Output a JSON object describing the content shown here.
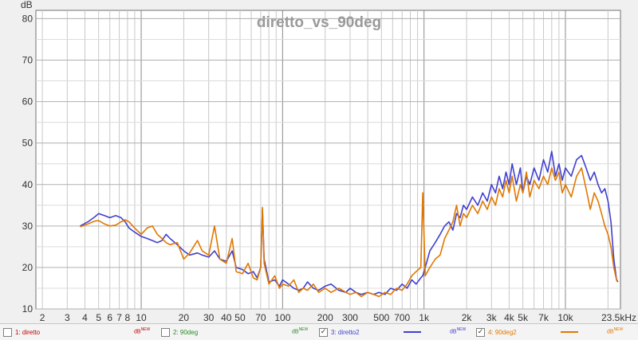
{
  "chart_data": {
    "type": "line",
    "title": "diretto_vs_90deg",
    "ylabel": "dB",
    "xlabel": "",
    "xscale": "log",
    "xlim": [
      1.8,
      24500
    ],
    "ylim": [
      10,
      82
    ],
    "grid": true,
    "x_tick_labels": [
      "2",
      "3",
      "4",
      "5",
      "6",
      "7",
      "8",
      "10",
      "20",
      "30",
      "40",
      "50",
      "70",
      "100",
      "200",
      "300",
      "500",
      "700",
      "1k",
      "2k",
      "3k",
      "4k",
      "5k",
      "7k",
      "10k",
      "23.5kHz"
    ],
    "x_tick_values": [
      2,
      3,
      4,
      5,
      6,
      7,
      8,
      10,
      20,
      30,
      40,
      50,
      70,
      100,
      200,
      300,
      500,
      700,
      1000,
      2000,
      3000,
      4000,
      5000,
      7000,
      10000,
      23500
    ],
    "y_ticks": [
      10,
      20,
      30,
      40,
      50,
      60,
      70,
      80
    ],
    "series": [
      {
        "name": "3: diretto2",
        "color": "#4040d0",
        "points": [
          [
            3.7,
            30
          ],
          [
            4.2,
            31
          ],
          [
            4.7,
            32.2
          ],
          [
            5.0,
            33
          ],
          [
            5.5,
            32.5
          ],
          [
            6.0,
            32
          ],
          [
            6.6,
            32.5
          ],
          [
            7.2,
            32
          ],
          [
            7.7,
            31
          ],
          [
            8.2,
            29.5
          ],
          [
            9.0,
            28.5
          ],
          [
            10,
            27.5
          ],
          [
            11,
            27
          ],
          [
            12,
            26.5
          ],
          [
            13,
            26
          ],
          [
            14,
            26.5
          ],
          [
            15,
            28
          ],
          [
            16,
            27
          ],
          [
            18,
            25.5
          ],
          [
            20,
            24
          ],
          [
            22,
            23
          ],
          [
            25,
            23.5
          ],
          [
            27,
            23
          ],
          [
            30,
            22.5
          ],
          [
            33,
            24
          ],
          [
            36,
            22
          ],
          [
            40,
            21.5
          ],
          [
            44,
            24
          ],
          [
            47,
            20
          ],
          [
            52,
            19.5
          ],
          [
            57,
            18.5
          ],
          [
            62,
            19
          ],
          [
            66,
            17.5
          ],
          [
            70,
            20
          ],
          [
            72,
            34
          ],
          [
            74,
            22
          ],
          [
            80,
            16.5
          ],
          [
            88,
            17
          ],
          [
            95,
            15.5
          ],
          [
            100,
            17
          ],
          [
            110,
            16
          ],
          [
            120,
            15
          ],
          [
            130,
            14.5
          ],
          [
            140,
            15
          ],
          [
            150,
            16.5
          ],
          [
            165,
            15
          ],
          [
            180,
            14.5
          ],
          [
            200,
            15.5
          ],
          [
            220,
            16
          ],
          [
            250,
            14.5
          ],
          [
            280,
            14
          ],
          [
            300,
            15
          ],
          [
            330,
            14
          ],
          [
            360,
            13.5
          ],
          [
            400,
            14
          ],
          [
            440,
            13.5
          ],
          [
            480,
            14
          ],
          [
            530,
            13.5
          ],
          [
            580,
            15
          ],
          [
            640,
            14.5
          ],
          [
            700,
            16
          ],
          [
            760,
            15
          ],
          [
            820,
            17
          ],
          [
            880,
            16
          ],
          [
            950,
            17.5
          ],
          [
            980,
            18
          ],
          [
            1020,
            20
          ],
          [
            1100,
            24
          ],
          [
            1200,
            26
          ],
          [
            1300,
            28
          ],
          [
            1400,
            30
          ],
          [
            1500,
            31
          ],
          [
            1600,
            29
          ],
          [
            1700,
            33
          ],
          [
            1800,
            32
          ],
          [
            1900,
            35
          ],
          [
            2000,
            34
          ],
          [
            2200,
            37
          ],
          [
            2400,
            35
          ],
          [
            2600,
            38
          ],
          [
            2800,
            36
          ],
          [
            3000,
            40
          ],
          [
            3200,
            38
          ],
          [
            3400,
            42
          ],
          [
            3600,
            39
          ],
          [
            3800,
            43
          ],
          [
            4000,
            40
          ],
          [
            4200,
            45
          ],
          [
            4500,
            40
          ],
          [
            4800,
            44
          ],
          [
            5000,
            38
          ],
          [
            5300,
            42
          ],
          [
            5600,
            40
          ],
          [
            6000,
            44
          ],
          [
            6500,
            41
          ],
          [
            7000,
            46
          ],
          [
            7500,
            43
          ],
          [
            8000,
            48
          ],
          [
            8500,
            42
          ],
          [
            9000,
            45
          ],
          [
            9500,
            41
          ],
          [
            10000,
            44
          ],
          [
            11000,
            42
          ],
          [
            12000,
            46
          ],
          [
            13000,
            47
          ],
          [
            14000,
            44
          ],
          [
            15000,
            41
          ],
          [
            16000,
            43
          ],
          [
            17000,
            40
          ],
          [
            18000,
            38
          ],
          [
            19000,
            39
          ],
          [
            20000,
            36
          ],
          [
            21000,
            31
          ],
          [
            22000,
            22
          ],
          [
            23000,
            17
          ],
          [
            23500,
            16.5
          ]
        ]
      },
      {
        "name": "4: 90deg2",
        "color": "#e07800",
        "points": [
          [
            3.7,
            29.8
          ],
          [
            4.2,
            30.5
          ],
          [
            4.7,
            31.2
          ],
          [
            5.0,
            31.3
          ],
          [
            5.5,
            30.5
          ],
          [
            6.0,
            30
          ],
          [
            6.6,
            30.2
          ],
          [
            7.2,
            31
          ],
          [
            7.7,
            31.5
          ],
          [
            8.2,
            31
          ],
          [
            9.0,
            29.5
          ],
          [
            10,
            28
          ],
          [
            11,
            29.5
          ],
          [
            12,
            30
          ],
          [
            13,
            28
          ],
          [
            14,
            27
          ],
          [
            15,
            26
          ],
          [
            16,
            25.5
          ],
          [
            18,
            26
          ],
          [
            20,
            22
          ],
          [
            22,
            23.5
          ],
          [
            25,
            26.5
          ],
          [
            27,
            24
          ],
          [
            30,
            23
          ],
          [
            33,
            30
          ],
          [
            36,
            22
          ],
          [
            40,
            21
          ],
          [
            44,
            27
          ],
          [
            47,
            19
          ],
          [
            52,
            18.5
          ],
          [
            57,
            21
          ],
          [
            62,
            17.5
          ],
          [
            66,
            17
          ],
          [
            70,
            20
          ],
          [
            72,
            34.5
          ],
          [
            74,
            21
          ],
          [
            80,
            16
          ],
          [
            88,
            18
          ],
          [
            95,
            15
          ],
          [
            100,
            16
          ],
          [
            110,
            15.5
          ],
          [
            120,
            17
          ],
          [
            130,
            14
          ],
          [
            140,
            15
          ],
          [
            150,
            14.5
          ],
          [
            165,
            16
          ],
          [
            180,
            14
          ],
          [
            200,
            15
          ],
          [
            220,
            14
          ],
          [
            250,
            15
          ],
          [
            280,
            14
          ],
          [
            300,
            13.5
          ],
          [
            330,
            14
          ],
          [
            360,
            13
          ],
          [
            400,
            14
          ],
          [
            440,
            13.5
          ],
          [
            480,
            13
          ],
          [
            530,
            14
          ],
          [
            580,
            13.5
          ],
          [
            640,
            15
          ],
          [
            700,
            14.5
          ],
          [
            760,
            16
          ],
          [
            820,
            18
          ],
          [
            880,
            19
          ],
          [
            950,
            20
          ],
          [
            980,
            38
          ],
          [
            1020,
            18
          ],
          [
            1100,
            20
          ],
          [
            1200,
            22
          ],
          [
            1300,
            23
          ],
          [
            1400,
            27
          ],
          [
            1500,
            29
          ],
          [
            1600,
            31
          ],
          [
            1700,
            35
          ],
          [
            1800,
            30
          ],
          [
            1900,
            33
          ],
          [
            2000,
            32
          ],
          [
            2200,
            35
          ],
          [
            2400,
            33
          ],
          [
            2600,
            36
          ],
          [
            2800,
            34
          ],
          [
            3000,
            37
          ],
          [
            3200,
            35
          ],
          [
            3400,
            39
          ],
          [
            3600,
            37
          ],
          [
            3800,
            41
          ],
          [
            4000,
            38
          ],
          [
            4200,
            42
          ],
          [
            4500,
            36
          ],
          [
            4800,
            40
          ],
          [
            5000,
            38
          ],
          [
            5300,
            43
          ],
          [
            5600,
            37
          ],
          [
            6000,
            41
          ],
          [
            6500,
            39
          ],
          [
            7000,
            42
          ],
          [
            7500,
            40
          ],
          [
            8000,
            44
          ],
          [
            8500,
            41
          ],
          [
            9000,
            43
          ],
          [
            9500,
            38
          ],
          [
            10000,
            40
          ],
          [
            11000,
            37
          ],
          [
            12000,
            42
          ],
          [
            13000,
            44
          ],
          [
            14000,
            39
          ],
          [
            15000,
            34
          ],
          [
            16000,
            38
          ],
          [
            17000,
            36
          ],
          [
            18000,
            33
          ],
          [
            19000,
            30
          ],
          [
            20000,
            28
          ],
          [
            21000,
            25
          ],
          [
            22000,
            20
          ],
          [
            23000,
            17
          ],
          [
            23500,
            16.8
          ]
        ]
      }
    ]
  },
  "legend": [
    {
      "label": "1: diretto",
      "unit": "dB",
      "sup": "NEW",
      "checked": false,
      "color": "#c00000"
    },
    {
      "label": "2: 90deg",
      "unit": "dB",
      "sup": "NEW",
      "checked": false,
      "color": "#2a8a2a"
    },
    {
      "label": "3: diretto2",
      "unit": "dB",
      "sup": "NEW",
      "checked": true,
      "color": "#4040d0"
    },
    {
      "label": "4: 90deg2",
      "unit": "dB",
      "sup": "NEW",
      "checked": true,
      "color": "#e07800"
    }
  ]
}
